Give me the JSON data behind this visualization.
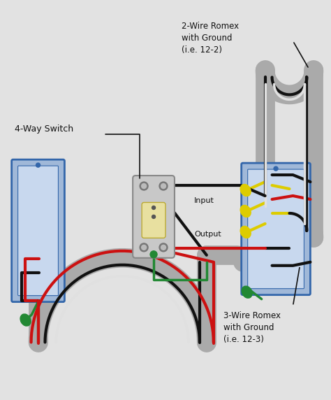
{
  "bg_color": "#e2e2e2",
  "labels": {
    "four_way_switch": "4-Way Switch",
    "two_wire_romex": "2-Wire Romex\nwith Ground\n(i.e. 12-2)",
    "three_wire_romex": "3-Wire Romex\nwith Ground\n(i.e. 12-3)",
    "input": "Input",
    "output": "Output"
  },
  "colors": {
    "bg": "#e2e2e2",
    "black_wire": "#111111",
    "red_wire": "#cc1111",
    "white_wire": "#e0e0e0",
    "yellow_wire": "#ddcc00",
    "green_wire": "#228833",
    "box_fill": "#a0b8d8",
    "box_edge": "#3366aa",
    "box_inner": "#c8d8ee",
    "conduit_gray": "#aaaaaa",
    "conduit_dark": "#888888",
    "switch_body": "#c8c8c8",
    "switch_toggle": "#e8e0a0",
    "switch_edge": "#888888",
    "screw_dark": "#777777",
    "screw_light": "#bbbbbb",
    "annotation_line": "#111111",
    "text": "#111111"
  },
  "figsize": [
    4.74,
    5.72
  ],
  "dpi": 100
}
